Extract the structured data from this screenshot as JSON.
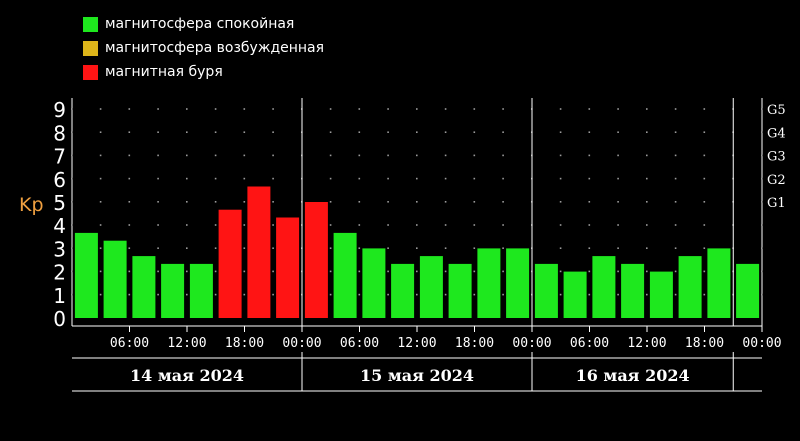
{
  "legend": [
    {
      "label": "магнитосфера спокойная",
      "color": "#1ee81e"
    },
    {
      "label": "магнитосфера возбужденная",
      "color": "#ddb51a"
    },
    {
      "label": "магнитная буря",
      "color": "#ff1414"
    }
  ],
  "chart_data": {
    "type": "bar",
    "ylabel": "Kp",
    "ylim": [
      0,
      9
    ],
    "yticks": [
      "0",
      "1",
      "2",
      "3",
      "4",
      "5",
      "6",
      "7",
      "8",
      "9"
    ],
    "g_levels": [
      {
        "label": "G1",
        "value": 5
      },
      {
        "label": "G2",
        "value": 6
      },
      {
        "label": "G3",
        "value": 7
      },
      {
        "label": "G4",
        "value": 8
      },
      {
        "label": "G5",
        "value": 9
      }
    ],
    "time_labels": [
      "06:00",
      "12:00",
      "18:00",
      "00:00",
      "06:00",
      "12:00",
      "18:00",
      "00:00",
      "06:00",
      "12:00",
      "18:00",
      "00:00"
    ],
    "days": [
      "14 мая 2024",
      "15 мая 2024",
      "16 мая 2024"
    ],
    "values": [
      3.67,
      3.33,
      2.67,
      2.33,
      2.33,
      4.67,
      5.67,
      4.33,
      5.0,
      3.67,
      3.0,
      2.33,
      2.67,
      2.33,
      3.0,
      3.0,
      2.33,
      2.0,
      2.67,
      2.33,
      2.0,
      2.67,
      3.0,
      2.33
    ],
    "colors": [
      "#1ee81e",
      "#1ee81e",
      "#1ee81e",
      "#1ee81e",
      "#1ee81e",
      "#ff1414",
      "#ff1414",
      "#ff1414",
      "#ff1414",
      "#1ee81e",
      "#1ee81e",
      "#1ee81e",
      "#1ee81e",
      "#1ee81e",
      "#1ee81e",
      "#1ee81e",
      "#1ee81e",
      "#1ee81e",
      "#1ee81e",
      "#1ee81e",
      "#1ee81e",
      "#1ee81e",
      "#1ee81e",
      "#1ee81e"
    ],
    "grid": true,
    "legend_position": "top-left"
  }
}
